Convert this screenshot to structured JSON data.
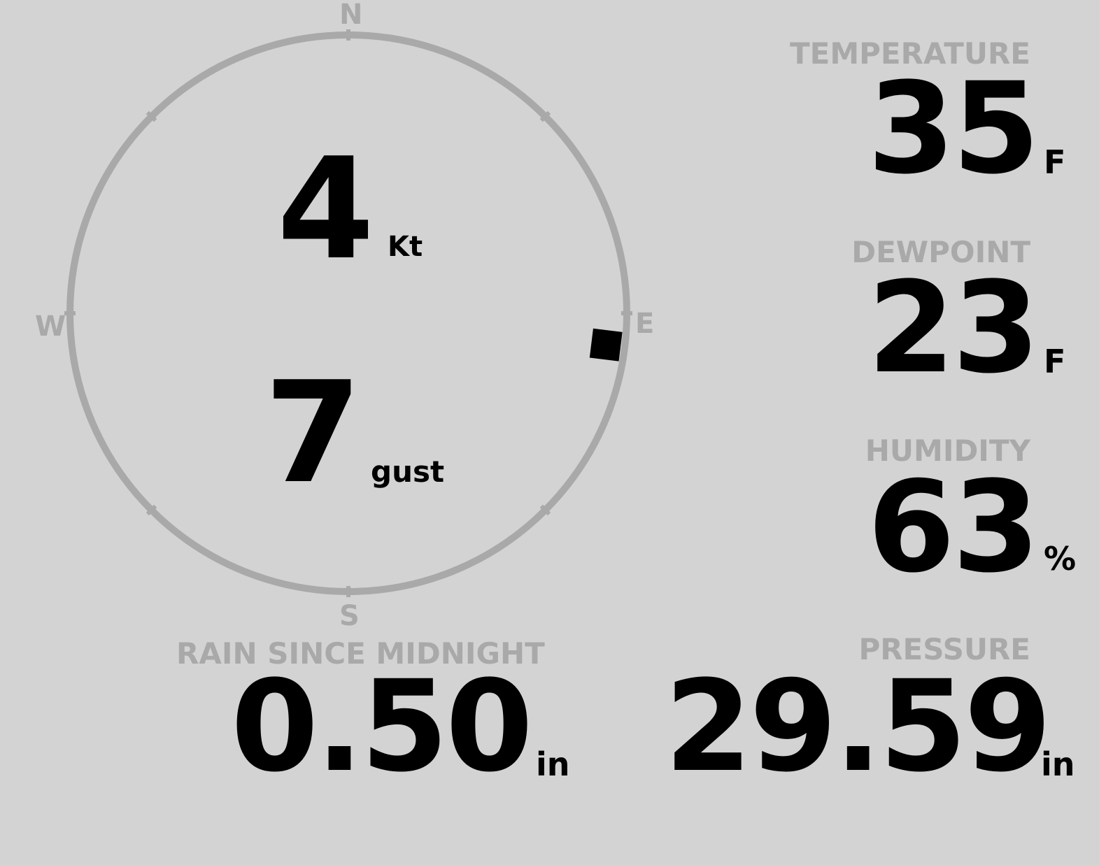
{
  "wind": {
    "speed": "4",
    "speed_unit": "Kt",
    "gust": "7",
    "gust_unit": "gust",
    "direction_deg": 97,
    "cardinals": {
      "n": "N",
      "e": "E",
      "s": "S",
      "w": "W"
    }
  },
  "temperature": {
    "label": "TEMPERATURE",
    "value": "35",
    "unit": "F"
  },
  "dewpoint": {
    "label": "DEWPOINT",
    "value": "23",
    "unit": "F"
  },
  "humidity": {
    "label": "HUMIDITY",
    "value": "63",
    "unit": "%"
  },
  "rain": {
    "label": "RAIN SINCE MIDNIGHT",
    "value": "0.50",
    "unit": "in"
  },
  "pressure": {
    "label": "PRESSURE",
    "value": "29.59",
    "unit": "in"
  },
  "colors": {
    "background": "#d3d3d3",
    "label": "#a9a9a9",
    "value": "#000000"
  }
}
